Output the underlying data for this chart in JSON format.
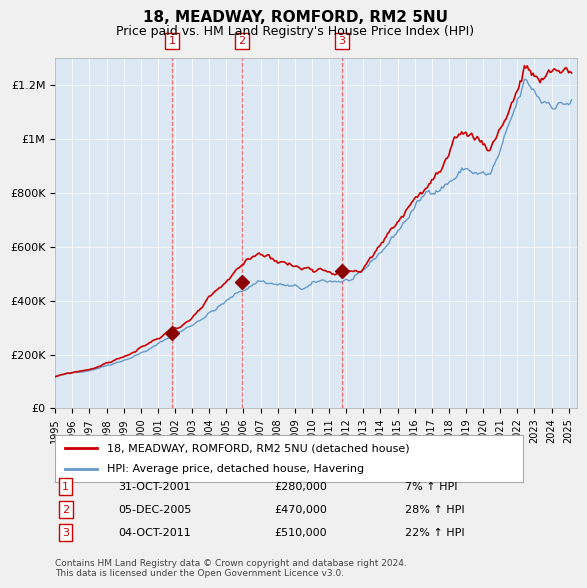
{
  "title": "18, MEADWAY, ROMFORD, RM2 5NU",
  "subtitle": "Price paid vs. HM Land Registry's House Price Index (HPI)",
  "title_fontsize": 12,
  "subtitle_fontsize": 10,
  "ylim": [
    0,
    1300000
  ],
  "yticks": [
    0,
    200000,
    400000,
    600000,
    800000,
    1000000,
    1200000
  ],
  "ytick_labels": [
    "£0",
    "£200K",
    "£400K",
    "£600K",
    "£800K",
    "£1M",
    "£1.2M"
  ],
  "bg_color": "#dce9f5",
  "plot_bg_color": "#dce9f5",
  "grid_color": "#ffffff",
  "red_line_color": "#cc0000",
  "blue_line_color": "#6699cc",
  "sale_marker_color": "#8b0000",
  "dashed_line_color": "#ff4444",
  "purchases": [
    {
      "label": "1",
      "year": 2001.83,
      "price": 280000,
      "date": "31-OCT-2001",
      "hpi_pct": "7%",
      "hpi_dir": "↑"
    },
    {
      "label": "2",
      "year": 2005.92,
      "price": 470000,
      "date": "05-DEC-2005",
      "hpi_pct": "28%",
      "hpi_dir": "↑"
    },
    {
      "label": "3",
      "year": 2011.75,
      "price": 510000,
      "date": "04-OCT-2011",
      "hpi_pct": "22%",
      "hpi_dir": "↑"
    }
  ],
  "legend_label_red": "18, MEADWAY, ROMFORD, RM2 5NU (detached house)",
  "legend_label_blue": "HPI: Average price, detached house, Havering",
  "footer_text": "Contains HM Land Registry data © Crown copyright and database right 2024.\nThis data is licensed under the Open Government Licence v3.0.",
  "x_start_year": 1995,
  "x_end_year": 2025
}
